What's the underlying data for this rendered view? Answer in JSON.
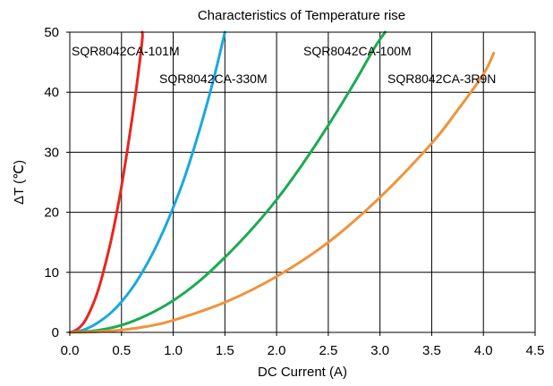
{
  "chart_data": {
    "type": "line",
    "title": "Characteristics of Temperature rise",
    "xlabel": "DC Current (A)",
    "ylabel": "ΔT (℃)",
    "xlim": [
      0,
      4.5
    ],
    "ylim": [
      0,
      50
    ],
    "x_ticks": [
      "0.0",
      "0.5",
      "1.0",
      "1.5",
      "2.0",
      "2.5",
      "3.0",
      "3.5",
      "4.0",
      "4.5"
    ],
    "y_ticks": [
      "0",
      "10",
      "20",
      "30",
      "40",
      "50"
    ],
    "grid": true,
    "series": [
      {
        "name": "SQR8042CA-101M",
        "color": "#e8261c",
        "points": [
          [
            0,
            0
          ],
          [
            0.05,
            0.3
          ],
          [
            0.1,
            0.9
          ],
          [
            0.15,
            2.0
          ],
          [
            0.2,
            3.7
          ],
          [
            0.25,
            5.8
          ],
          [
            0.3,
            8.5
          ],
          [
            0.35,
            11.8
          ],
          [
            0.4,
            15.4
          ],
          [
            0.45,
            19.6
          ],
          [
            0.5,
            24.3
          ],
          [
            0.55,
            29.6
          ],
          [
            0.6,
            35.3
          ],
          [
            0.65,
            41.5
          ],
          [
            0.7,
            48.6
          ],
          [
            0.7,
            50
          ]
        ]
      },
      {
        "name": "SQR8042CA-330M",
        "color": "#1aa8e0",
        "points": [
          [
            0,
            0
          ],
          [
            0.1,
            0.25
          ],
          [
            0.2,
            0.9
          ],
          [
            0.3,
            1.95
          ],
          [
            0.4,
            3.3
          ],
          [
            0.5,
            5.1
          ],
          [
            0.6,
            7.3
          ],
          [
            0.7,
            10.0
          ],
          [
            0.8,
            13.1
          ],
          [
            0.9,
            16.7
          ],
          [
            1.0,
            20.8
          ],
          [
            1.1,
            25.3
          ],
          [
            1.2,
            30.6
          ],
          [
            1.3,
            36.4
          ],
          [
            1.4,
            42.8
          ],
          [
            1.5,
            50
          ]
        ]
      },
      {
        "name": "SQR8042CA-100M",
        "color": "#1bab52",
        "points": [
          [
            0,
            0
          ],
          [
            0.25,
            0.3
          ],
          [
            0.5,
            1.2
          ],
          [
            0.75,
            2.9
          ],
          [
            1.0,
            5.3
          ],
          [
            1.25,
            8.5
          ],
          [
            1.5,
            12.5
          ],
          [
            1.75,
            17.0
          ],
          [
            2.0,
            22.1
          ],
          [
            2.25,
            28.0
          ],
          [
            2.5,
            34.5
          ],
          [
            2.75,
            41.5
          ],
          [
            2.95,
            47.5
          ],
          [
            3.05,
            50
          ]
        ]
      },
      {
        "name": "SQR8042CA-3R9N",
        "color": "#f0933a",
        "points": [
          [
            0,
            0
          ],
          [
            0.25,
            0.1
          ],
          [
            0.5,
            0.4
          ],
          [
            0.75,
            1.0
          ],
          [
            1.0,
            2.0
          ],
          [
            1.5,
            5.0
          ],
          [
            2.0,
            9.3
          ],
          [
            2.5,
            15.0
          ],
          [
            3.0,
            22.5
          ],
          [
            3.5,
            31.5
          ],
          [
            3.75,
            37.0
          ],
          [
            4.0,
            43.0
          ],
          [
            4.1,
            46.5
          ]
        ]
      }
    ]
  }
}
